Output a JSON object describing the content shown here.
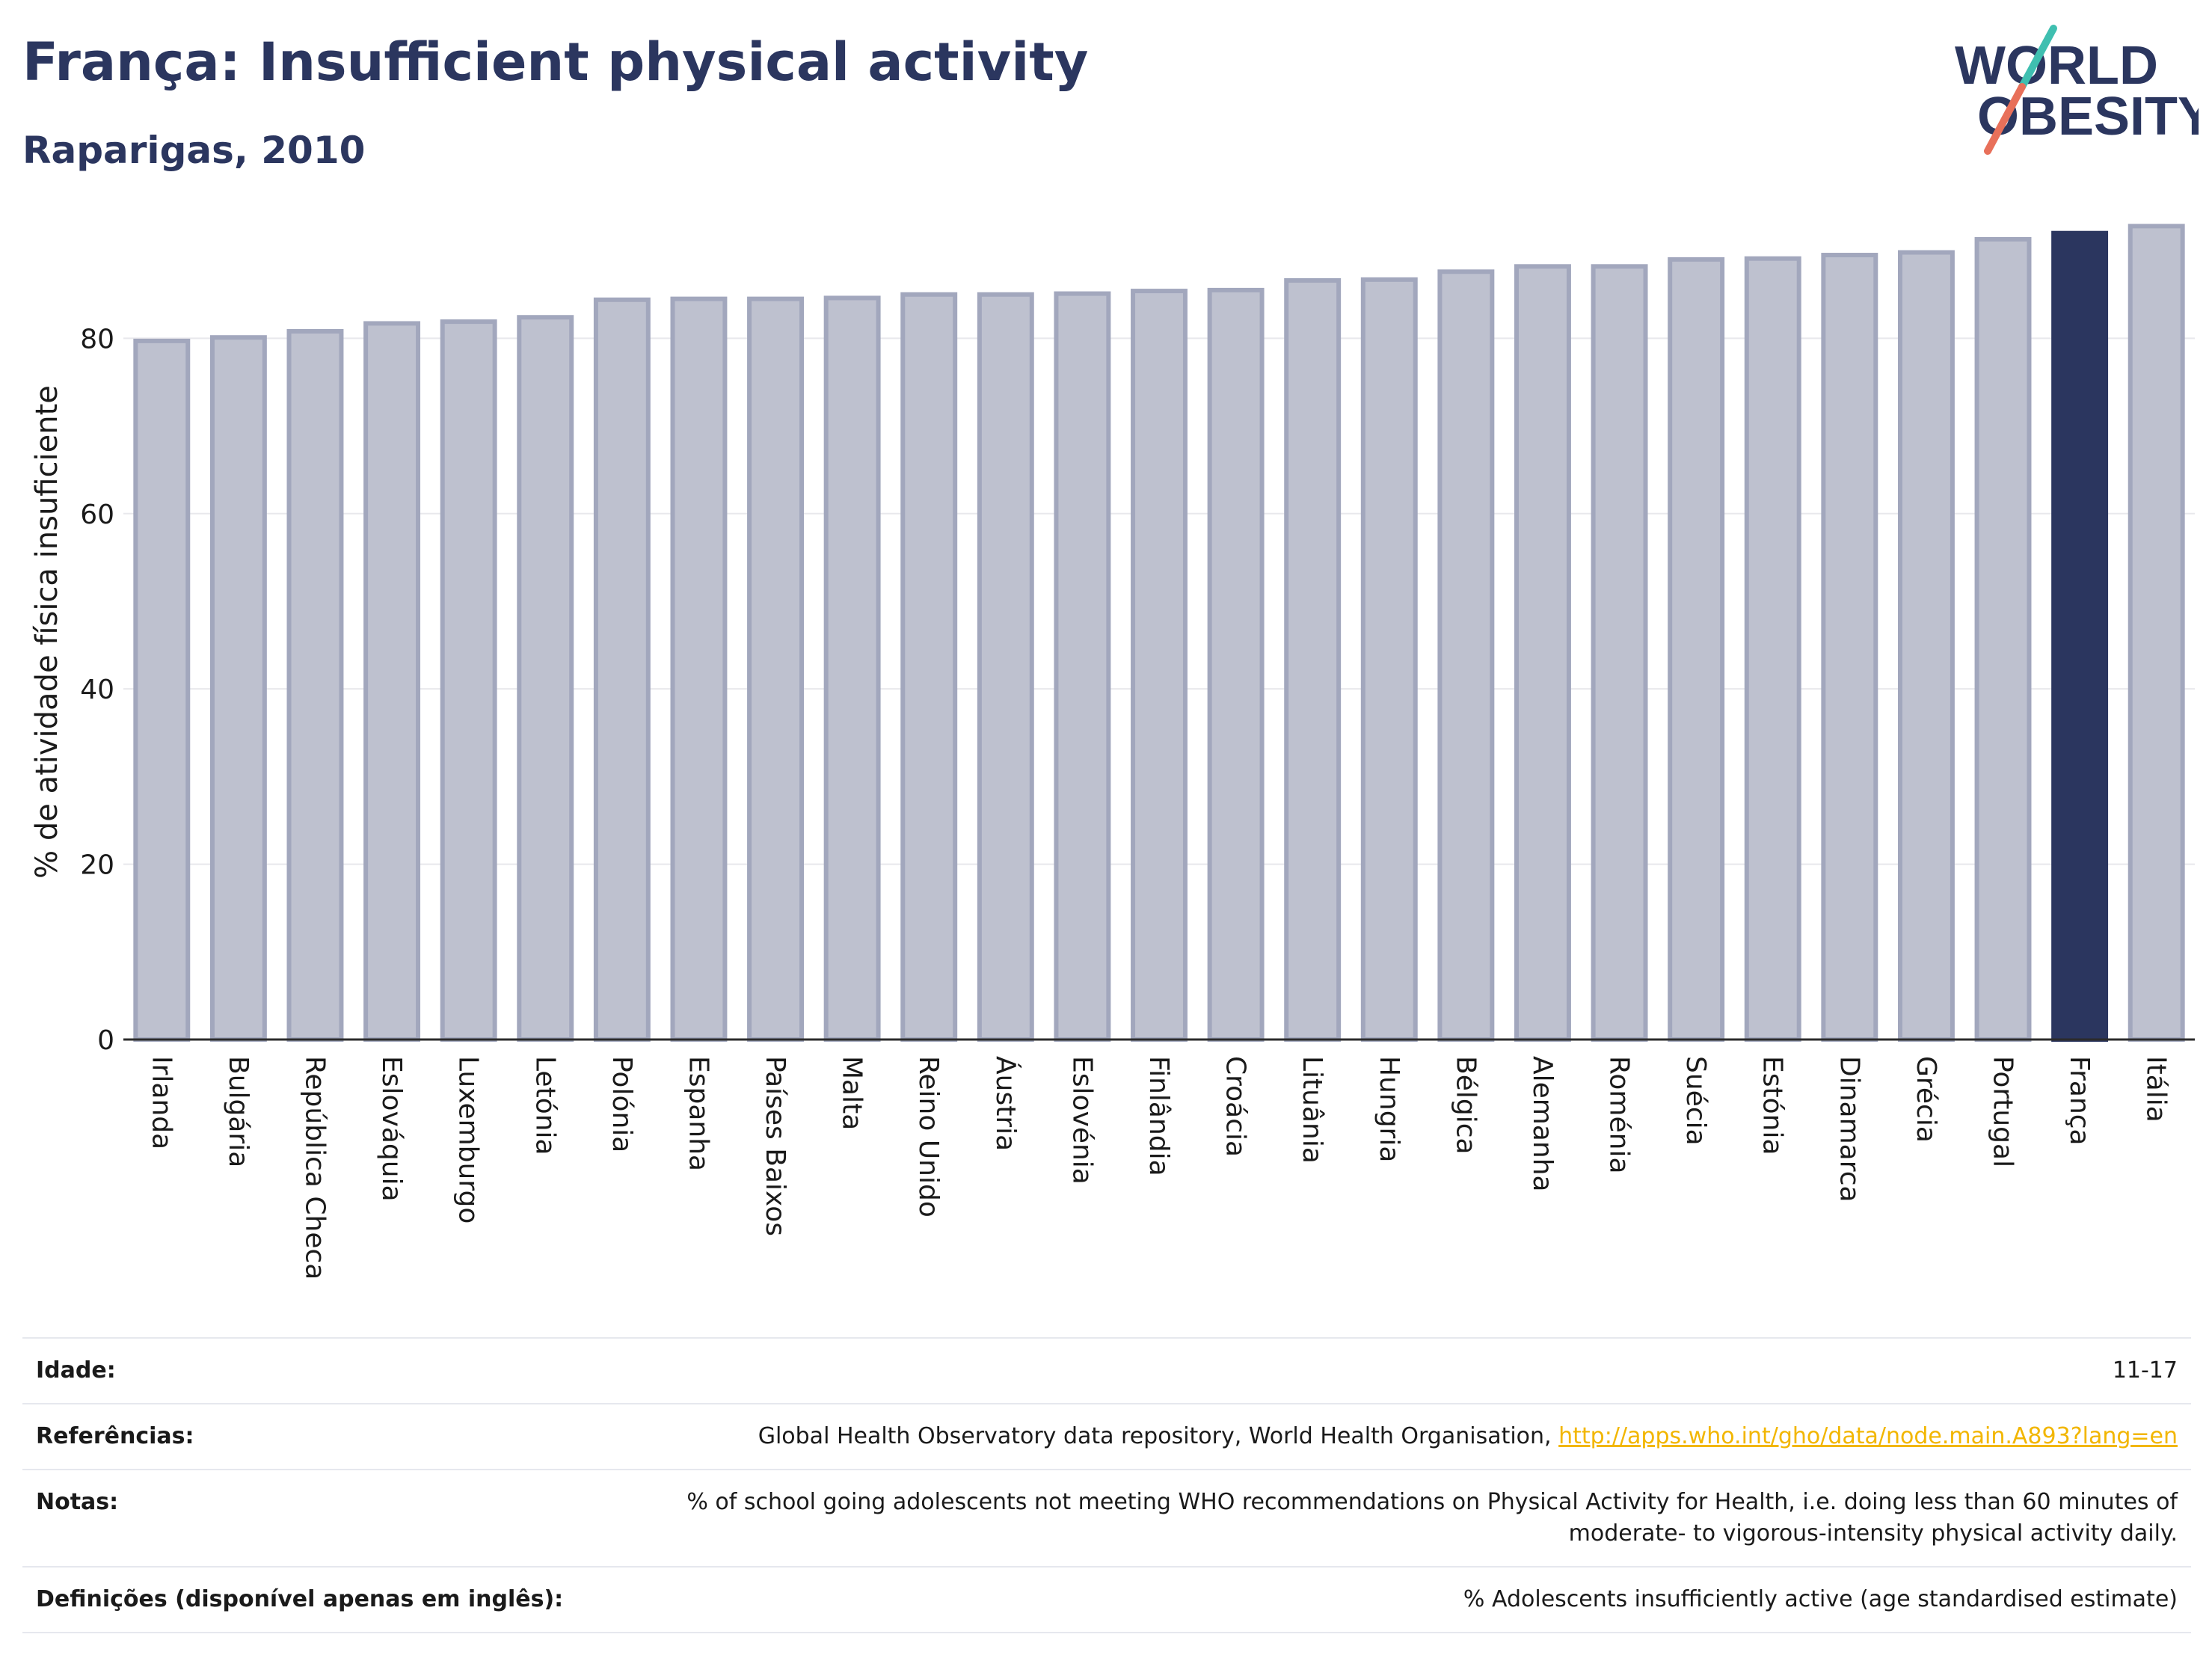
{
  "header": {
    "title": "França: Insufficient physical activity",
    "subtitle": "Raparigas, 2010"
  },
  "logo": {
    "line1": "WORLD",
    "line2": "OBESITY",
    "accent_teal": "#3fbfb0",
    "accent_coral": "#e8705a"
  },
  "colors": {
    "bar_default": "#bec1cf",
    "bar_default_stroke": "#a2a7bd",
    "bar_highlight": "#2b365f",
    "text_dark": "#2b365f",
    "link": "#f2b600"
  },
  "chart_data": {
    "type": "bar",
    "ylabel": "% de atividade física insuficiente",
    "xlabel": "",
    "ylim": [
      0,
      93
    ],
    "yticks": [
      0,
      20,
      40,
      60,
      80
    ],
    "grid": true,
    "highlight": "França",
    "categories": [
      "Irlanda",
      "Bulgária",
      "República Checa",
      "Eslováquia",
      "Luxemburgo",
      "Letónia",
      "Polónia",
      "Espanha",
      "Países Baixos",
      "Malta",
      "Reino Unido",
      "Áustria",
      "Eslovénia",
      "Finlândia",
      "Croácia",
      "Lituânia",
      "Hungria",
      "Bélgica",
      "Alemanha",
      "Roménia",
      "Suécia",
      "Estónia",
      "Dinamarca",
      "Grécia",
      "Portugal",
      "França",
      "Itália"
    ],
    "values": [
      79.7,
      80.1,
      80.8,
      81.7,
      81.9,
      82.4,
      84.4,
      84.5,
      84.5,
      84.6,
      85.0,
      85.0,
      85.1,
      85.4,
      85.5,
      86.6,
      86.7,
      87.6,
      88.2,
      88.2,
      89.0,
      89.1,
      89.5,
      89.8,
      91.3,
      92.0,
      92.8
    ]
  },
  "info": {
    "age_label": "Idade:",
    "age_value": "11-17",
    "refs_label": "Referências:",
    "refs_text": "Global Health Observatory data repository, World Health Organisation,",
    "refs_link": "http://apps.who.int/gho/data/node.main.A893?lang=en",
    "notes_label": "Notas:",
    "notes_line1": "% of school going adolescents not meeting WHO recommendations on Physical Activity for Health, i.e. doing less than 60 minutes of",
    "notes_line2": "moderate- to vigorous-intensity physical activity daily.",
    "defs_label": "Definições (disponível apenas em inglês):",
    "defs_value": "% Adolescents insufficiently active (age standardised estimate)"
  }
}
